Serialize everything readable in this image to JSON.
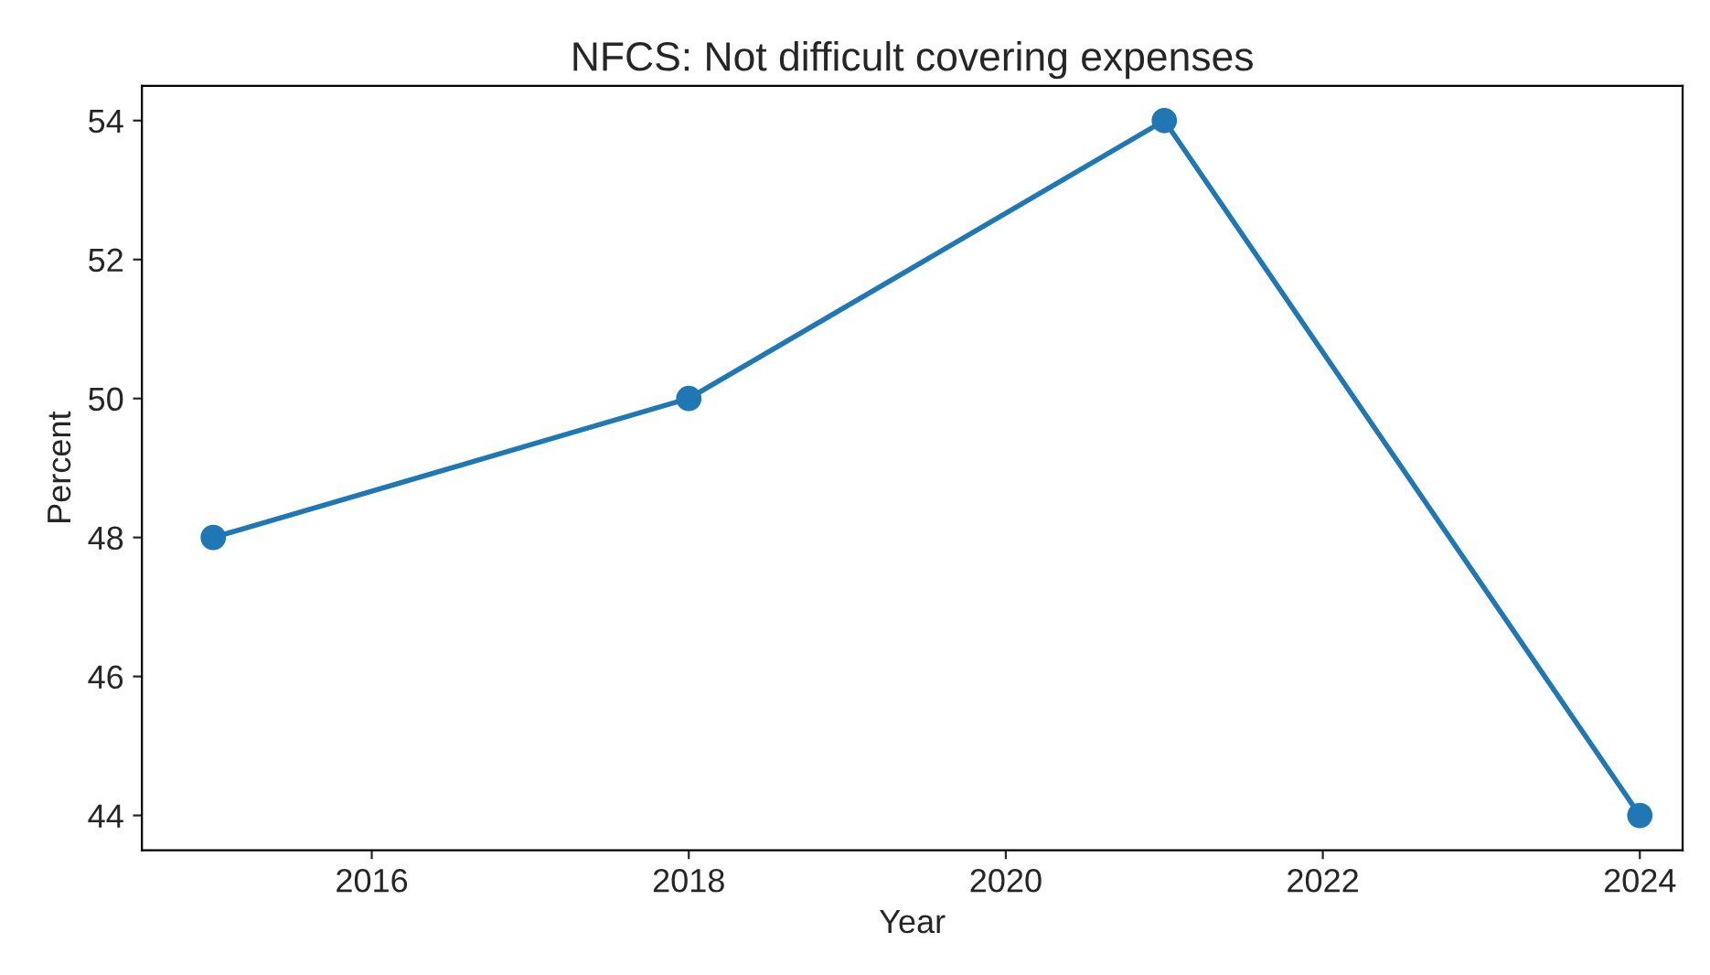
{
  "chart_data": {
    "type": "line",
    "title": "NFCS: Not difficult covering expenses",
    "xlabel": "Year",
    "ylabel": "Percent",
    "x": [
      2015,
      2018,
      2021,
      2024
    ],
    "series": [
      {
        "color": "#1f77b4",
        "values": [
          48,
          50,
          54,
          44
        ]
      }
    ],
    "xlim": [
      2014.55,
      2024.27
    ],
    "xticks": [
      2016,
      2018,
      2020,
      2022,
      2024
    ],
    "ylim": [
      43.5,
      54.5
    ],
    "yticks": [
      44,
      46,
      48,
      50,
      52,
      54
    ],
    "marker": "circle",
    "line_style": "solid",
    "grid": false,
    "legend": false
  }
}
